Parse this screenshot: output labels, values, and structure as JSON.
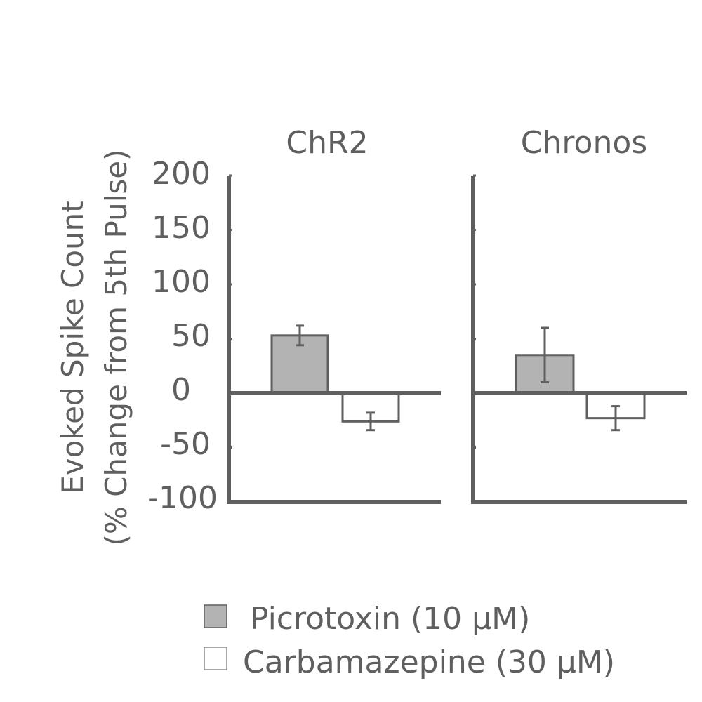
{
  "chart_data": {
    "type": "bar",
    "ylabel_lines": [
      "Evoked Spike Count",
      "(% Change from 5th Pulse)"
    ],
    "ylim": [
      -100,
      200
    ],
    "yticks": [
      "200",
      "150",
      "100",
      "50",
      "0",
      "-50",
      "-100"
    ],
    "ytick_values": [
      200,
      150,
      100,
      50,
      0,
      -50,
      -100
    ],
    "grid": false,
    "legend_position": "bottom",
    "series": [
      {
        "name": "Picrotoxin (10 μM)",
        "color": "#b3b3b3"
      },
      {
        "name": "Carbamazepine (30 μM)",
        "color": "#ffffff"
      }
    ],
    "panels": [
      {
        "title": "ChR2",
        "values": [
          53,
          -26
        ],
        "errors": [
          9,
          8
        ]
      },
      {
        "title": "Chronos",
        "values": [
          35,
          -23
        ],
        "errors": [
          25,
          11
        ]
      }
    ]
  },
  "colors": {
    "axis": "#5f5f5f",
    "bar_outline": "#5f5f5f"
  }
}
